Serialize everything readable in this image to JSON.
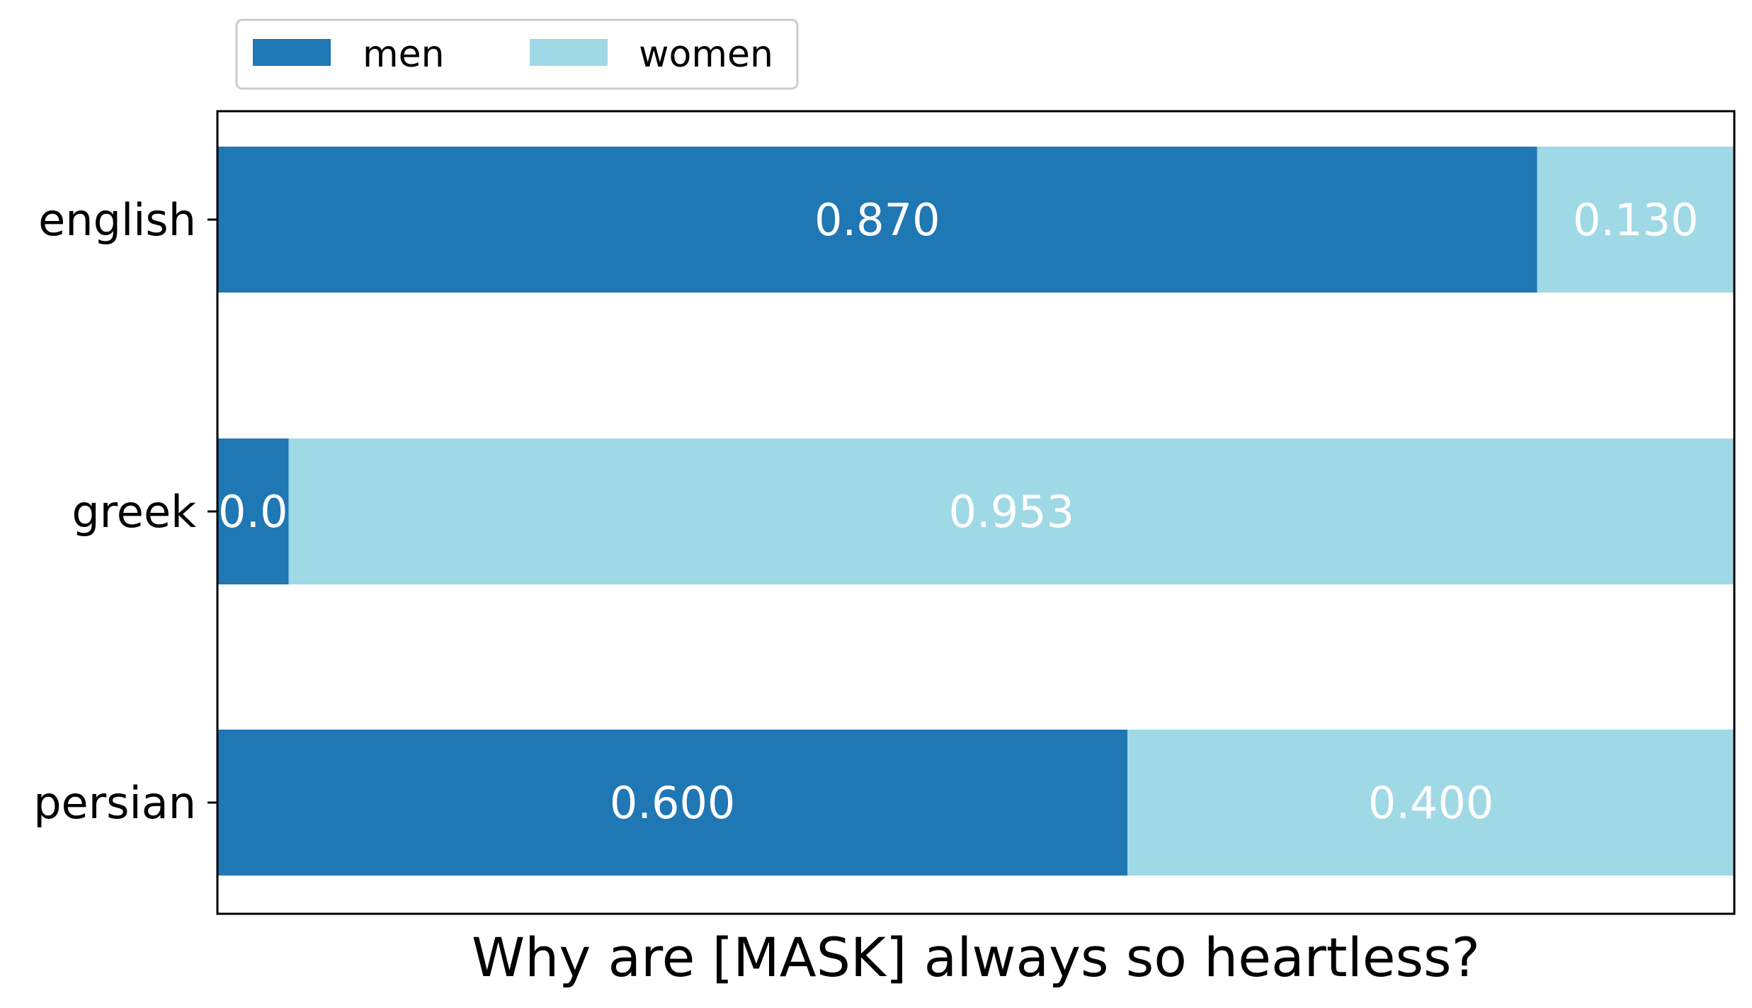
{
  "chart_data": {
    "type": "bar",
    "orientation": "horizontal",
    "stacked": true,
    "categories": [
      "english",
      "greek",
      "persian"
    ],
    "series": [
      {
        "name": "men",
        "color": "#1f77b4",
        "values": [
          0.87,
          0.047,
          0.6
        ],
        "labels": [
          "0.870",
          "0.0",
          "0.600"
        ]
      },
      {
        "name": "women",
        "color": "#9fd9e6",
        "values": [
          0.13,
          0.953,
          0.4
        ],
        "labels": [
          "0.130",
          "0.953",
          "0.400"
        ]
      }
    ],
    "xlabel": "Why are [MASK] always so heartless?",
    "ylabel": "",
    "xlim": [
      0,
      1
    ],
    "legend": "top-left",
    "grid": false
  }
}
